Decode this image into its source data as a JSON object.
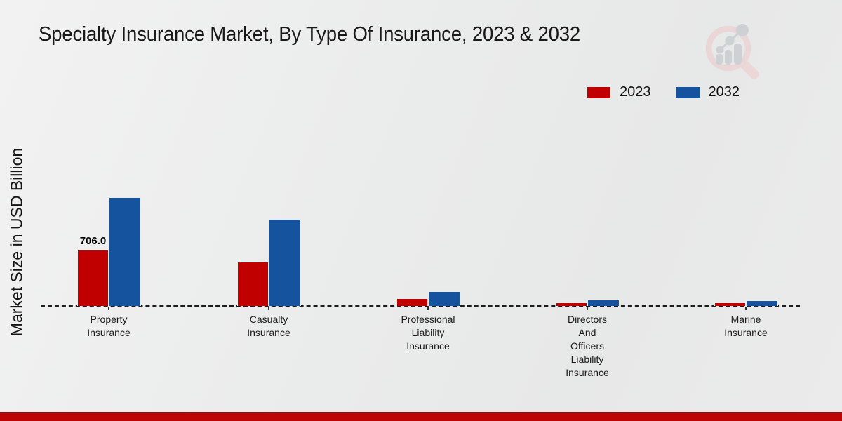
{
  "title": "Specialty Insurance Market, By Type Of Insurance, 2023 & 2032",
  "y_axis_label": "Market Size in USD Billion",
  "legend": {
    "items": [
      {
        "label": "2023",
        "color": "#c00000"
      },
      {
        "label": "2032",
        "color": "#15539e"
      }
    ]
  },
  "chart_data": {
    "type": "bar",
    "title": "Specialty Insurance Market, By Type Of Insurance, 2023 & 2032",
    "xlabel": "",
    "ylabel": "Market Size in USD Billion",
    "categories": [
      "Property Insurance",
      "Casualty Insurance",
      "Professional Liability Insurance",
      "Directors And Officers Liability Insurance",
      "Marine Insurance"
    ],
    "category_label_lines": [
      [
        "Property",
        "Insurance"
      ],
      [
        "Casualty",
        "Insurance"
      ],
      [
        "Professional",
        "Liability",
        "Insurance"
      ],
      [
        "Directors",
        "And",
        "Officers",
        "Liability",
        "Insurance"
      ],
      [
        "Marine",
        "Insurance"
      ]
    ],
    "series": [
      {
        "name": "2023",
        "color": "#c00000",
        "values": [
          706.0,
          555,
          100,
          45,
          45
        ]
      },
      {
        "name": "2032",
        "color": "#15539e",
        "values": [
          1372,
          1095,
          185,
          80,
          70
        ]
      }
    ],
    "annotations": [
      {
        "category": "Property Insurance",
        "series": "2023",
        "text": "706.0"
      }
    ],
    "ylim": [
      0,
      1500
    ],
    "grid": false,
    "y_ticks_shown": false,
    "legend_position": "top-right",
    "baseline_style": "dashed"
  },
  "footer": {
    "band_color": "#bd0505"
  }
}
